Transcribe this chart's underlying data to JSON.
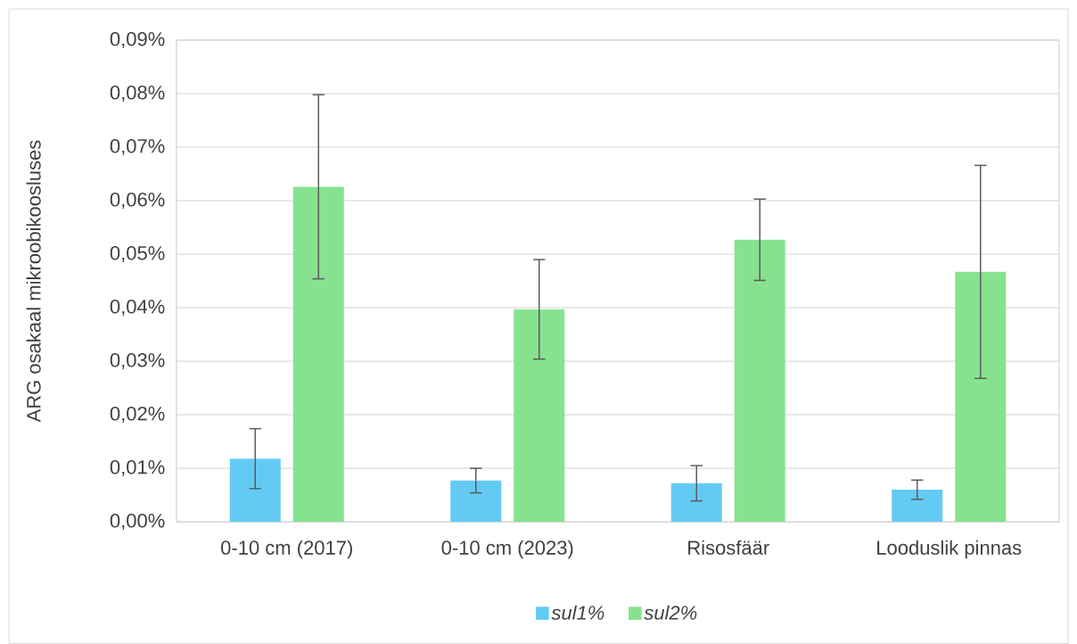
{
  "chart_data": {
    "type": "bar",
    "ylabel": "ARG osakaal mikroobikoosluses",
    "categories": [
      "0-10 cm (2017)",
      "0-10 cm (2023)",
      "Risosfäär",
      "Looduslik pinnas"
    ],
    "series": [
      {
        "name": "sul1%",
        "color": "#63cbf3",
        "values": [
          0.0118,
          0.0077,
          0.0072,
          0.006
        ],
        "errors": [
          0.0056,
          0.0023,
          0.0033,
          0.0018
        ]
      },
      {
        "name": "sul2%",
        "color": "#86e28f",
        "values": [
          0.0626,
          0.0397,
          0.0527,
          0.0467
        ],
        "errors": [
          0.0172,
          0.0093,
          0.0076,
          0.0199
        ]
      }
    ],
    "ylim": [
      0,
      0.09
    ],
    "yticks": [
      {
        "value": 0,
        "label": "0,00%"
      },
      {
        "value": 0.01,
        "label": "0,01%"
      },
      {
        "value": 0.02,
        "label": "0,02%"
      },
      {
        "value": 0.03,
        "label": "0,03%"
      },
      {
        "value": 0.04,
        "label": "0,04%"
      },
      {
        "value": 0.05,
        "label": "0,05%"
      },
      {
        "value": 0.06,
        "label": "0,06%"
      },
      {
        "value": 0.07,
        "label": "0,07%"
      },
      {
        "value": 0.08,
        "label": "0,08%"
      },
      {
        "value": 0.09,
        "label": "0,09%"
      }
    ],
    "grid": "y",
    "legend": "bottom"
  }
}
